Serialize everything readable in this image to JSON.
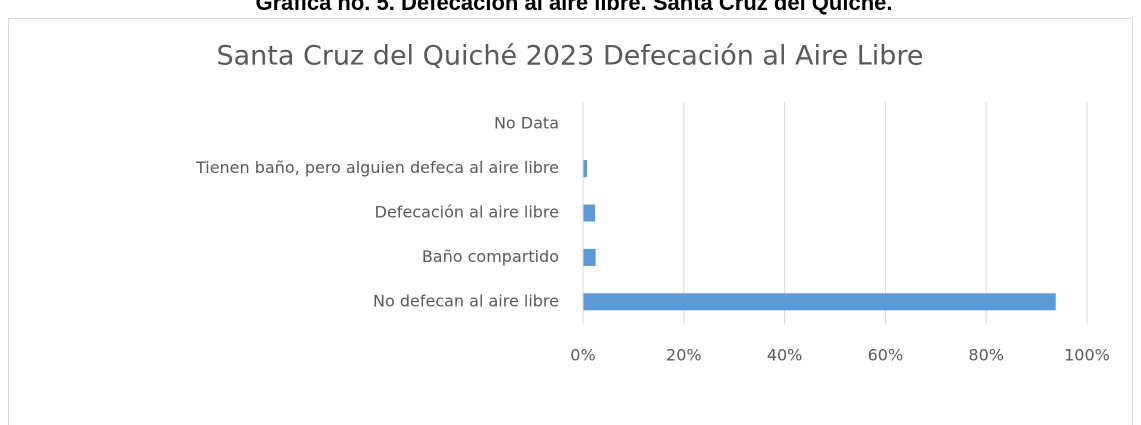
{
  "header": "Gráfica no. 5. Defecación al aire libre. Santa Cruz del Quiché.",
  "chart_data": {
    "type": "bar",
    "orientation": "horizontal",
    "title": "Santa Cruz del Quiché 2023 Defecación al Aire Libre",
    "categories": [
      "No Data",
      "Tienen baño, pero alguien defeca al aire libre",
      "Defecación al aire libre",
      "Baño compartido",
      "No defecan al aire libre"
    ],
    "values": [
      0,
      0.8,
      2.4,
      2.5,
      93.8
    ],
    "color": "#5b9bd5",
    "xlim": [
      0,
      100
    ],
    "xticks": [
      {
        "value": 0,
        "label": "0%"
      },
      {
        "value": 20,
        "label": "20%"
      },
      {
        "value": 40,
        "label": "40%"
      },
      {
        "value": 60,
        "label": "60%"
      },
      {
        "value": 80,
        "label": "80%"
      },
      {
        "value": 100,
        "label": "100%"
      }
    ],
    "grid": true
  }
}
